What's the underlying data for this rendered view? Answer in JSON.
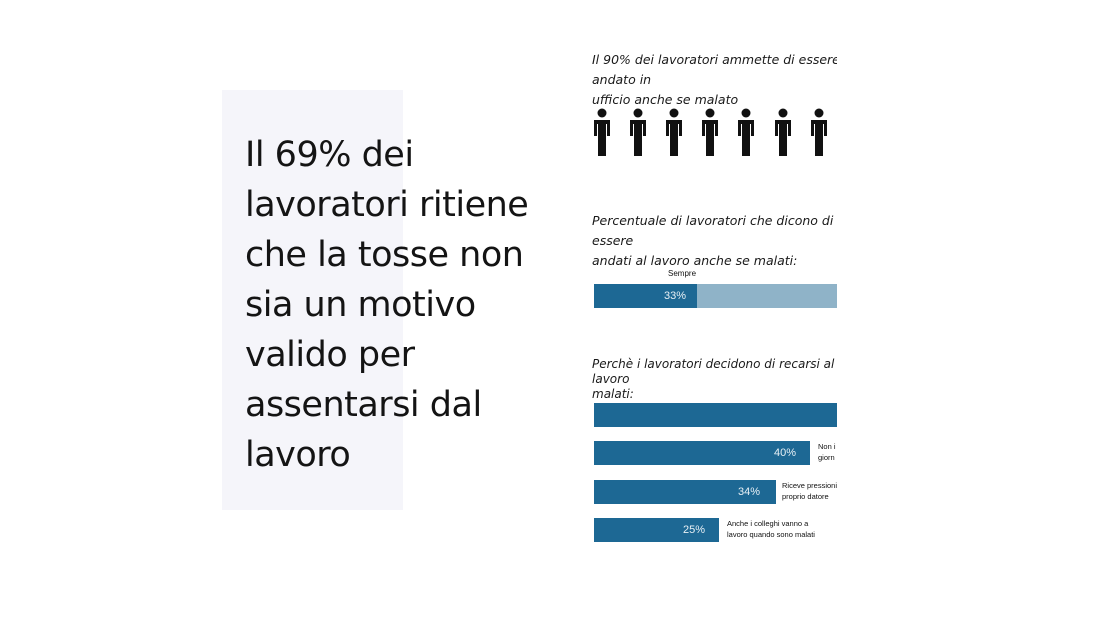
{
  "headline": "Il 69% dei lavoratori ritiene che la tosse non sia un motivo valido per assentarsi dal lavoro",
  "section1": {
    "caption": "Il 90% dei lavoratori ammette di essere andato in\nufficio anche se malato",
    "icon_count": 7
  },
  "section2": {
    "caption": "Percentuale di lavoratori che dicono di essere\nandati al lavoro anche se malati:",
    "bar_label": "Sempre",
    "value_label": "33%",
    "value": 33
  },
  "section3": {
    "caption": "Perchè i lavoratori decidono di recarsi al lavoro\nmalati:",
    "bars": [
      {
        "value_label": "",
        "value": 100,
        "reason": ""
      },
      {
        "value_label": "40%",
        "value": 40,
        "reason": "Non i\ngiorn"
      },
      {
        "value_label": "34%",
        "value": 34,
        "reason": "Riceve pressioni\nproprio datore"
      },
      {
        "value_label": "25%",
        "value": 25,
        "reason": "Anche i colleghi vanno a\nlavoro quando sono malati"
      }
    ]
  },
  "colors": {
    "bar_dark": "#1d6894",
    "bar_light": "#8fb3c8",
    "quote_bg": "#f5f5fa"
  }
}
